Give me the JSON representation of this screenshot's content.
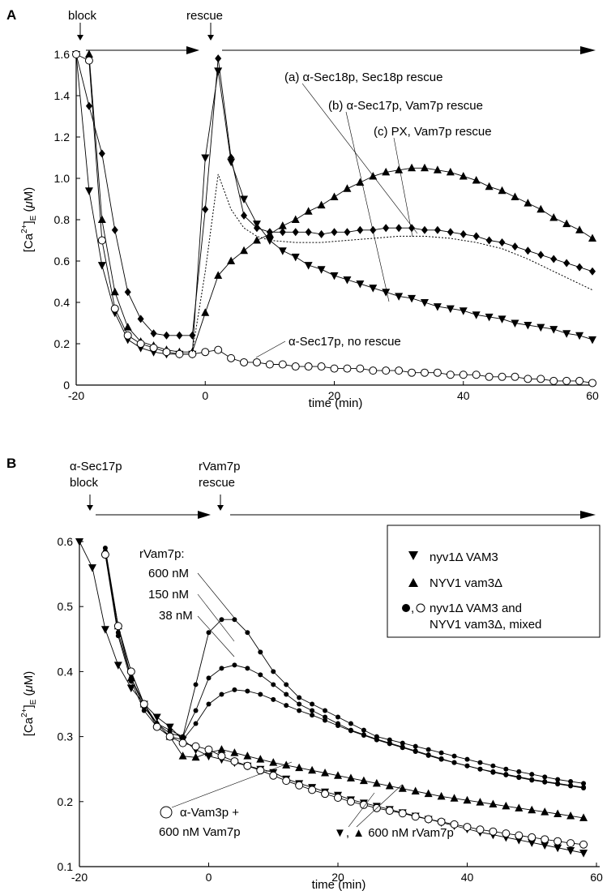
{
  "chart_data": [
    {
      "panel": "A",
      "type": "line",
      "xlabel": "time (min)",
      "ylabel": "[Ca2+]E (μM)",
      "xlim": [
        -20,
        60
      ],
      "ylim": [
        0,
        1.6
      ],
      "xticks": [
        -20,
        0,
        20,
        40,
        60
      ],
      "yticks": [
        0,
        0.2,
        0.4,
        0.6,
        0.8,
        1.0,
        1.2,
        1.4,
        1.6
      ],
      "ytick_labels": [
        "0",
        "0.2",
        "0.4",
        "0.6",
        "0.8",
        "1.0",
        "1.2",
        "1.4",
        "1.6"
      ],
      "top_labels": {
        "block": "block",
        "rescue": "rescue"
      },
      "series": [
        {
          "name": "(a) α-Sec18p, Sec18p rescue",
          "marker": "triangle-up",
          "x": [
            -18,
            -16,
            -14,
            -12,
            -10,
            -8,
            -6,
            -4,
            -2,
            0,
            2,
            4,
            6,
            8,
            10,
            12,
            14,
            16,
            18,
            20,
            22,
            24,
            26,
            28,
            30,
            32,
            34,
            36,
            38,
            40,
            42,
            44,
            46,
            48,
            50,
            52,
            54,
            56,
            58,
            60
          ],
          "y": [
            1.6,
            0.8,
            0.45,
            0.28,
            0.21,
            0.19,
            0.17,
            0.16,
            0.16,
            0.35,
            0.53,
            0.6,
            0.65,
            0.7,
            0.73,
            0.77,
            0.8,
            0.84,
            0.87,
            0.91,
            0.95,
            0.98,
            1.01,
            1.03,
            1.04,
            1.05,
            1.05,
            1.04,
            1.03,
            1.01,
            0.99,
            0.96,
            0.94,
            0.91,
            0.88,
            0.85,
            0.81,
            0.78,
            0.75,
            0.71
          ]
        },
        {
          "name": "(b) α-Sec17p, Vam7p rescue",
          "marker": "triangle-down",
          "x": [
            -20,
            -18,
            -16,
            -14,
            -12,
            -10,
            -8,
            -6,
            -4,
            -2,
            0,
            2,
            4,
            6,
            8,
            10,
            12,
            14,
            16,
            18,
            20,
            22,
            24,
            26,
            28,
            30,
            32,
            34,
            36,
            38,
            40,
            42,
            44,
            46,
            48,
            50,
            52,
            54,
            56,
            58,
            60
          ],
          "y": [
            1.6,
            0.94,
            0.58,
            0.35,
            0.22,
            0.18,
            0.16,
            0.15,
            0.15,
            0.15,
            1.1,
            1.52,
            1.08,
            0.9,
            0.78,
            0.7,
            0.65,
            0.62,
            0.58,
            0.56,
            0.53,
            0.51,
            0.49,
            0.47,
            0.45,
            0.43,
            0.42,
            0.4,
            0.38,
            0.37,
            0.36,
            0.34,
            0.33,
            0.32,
            0.3,
            0.29,
            0.28,
            0.27,
            0.25,
            0.24,
            0.22
          ]
        },
        {
          "name": "(c) PX, Vam7p rescue",
          "marker": "diamond",
          "x": [
            -20,
            -18,
            -16,
            -14,
            -12,
            -10,
            -8,
            -6,
            -4,
            -2,
            0,
            2,
            4,
            6,
            8,
            10,
            12,
            14,
            16,
            18,
            20,
            22,
            24,
            26,
            28,
            30,
            32,
            34,
            36,
            38,
            40,
            42,
            44,
            46,
            48,
            50,
            52,
            54,
            56,
            58,
            60
          ],
          "y": [
            1.6,
            1.35,
            1.12,
            0.75,
            0.45,
            0.32,
            0.25,
            0.24,
            0.24,
            0.24,
            0.85,
            1.58,
            1.1,
            0.82,
            0.76,
            0.74,
            0.74,
            0.74,
            0.74,
            0.73,
            0.74,
            0.74,
            0.75,
            0.75,
            0.76,
            0.76,
            0.76,
            0.75,
            0.75,
            0.74,
            0.73,
            0.72,
            0.7,
            0.69,
            0.67,
            0.65,
            0.63,
            0.61,
            0.59,
            0.57,
            0.55
          ]
        },
        {
          "name": "α-Sec17p, no rescue",
          "marker": "circle-open",
          "x": [
            -20,
            -18,
            -16,
            -14,
            -12,
            -10,
            -8,
            -6,
            -4,
            -2,
            0,
            2,
            4,
            6,
            8,
            10,
            12,
            14,
            16,
            18,
            20,
            22,
            24,
            26,
            28,
            30,
            32,
            34,
            36,
            38,
            40,
            42,
            44,
            46,
            48,
            50,
            52,
            54,
            56,
            58,
            60
          ],
          "y": [
            1.6,
            1.57,
            0.7,
            0.37,
            0.24,
            0.2,
            0.18,
            0.16,
            0.15,
            0.15,
            0.16,
            0.17,
            0.13,
            0.11,
            0.11,
            0.1,
            0.1,
            0.09,
            0.09,
            0.09,
            0.08,
            0.08,
            0.08,
            0.07,
            0.07,
            0.07,
            0.06,
            0.06,
            0.06,
            0.05,
            0.05,
            0.05,
            0.04,
            0.04,
            0.04,
            0.03,
            0.03,
            0.02,
            0.02,
            0.02,
            0.01
          ]
        },
        {
          "name": "",
          "marker": "none",
          "style": "dotted",
          "x": [
            -2,
            0,
            2,
            4,
            6,
            8,
            10,
            14,
            18,
            22,
            26,
            30,
            34,
            38,
            42,
            46,
            50,
            54,
            58,
            60
          ],
          "y": [
            0.16,
            0.55,
            1.02,
            0.85,
            0.76,
            0.72,
            0.7,
            0.69,
            0.69,
            0.7,
            0.71,
            0.72,
            0.72,
            0.71,
            0.69,
            0.66,
            0.61,
            0.55,
            0.49,
            0.46
          ]
        }
      ],
      "annotations": [
        "(a) α-Sec18p, Sec18p rescue",
        "(b) α-Sec17p, Vam7p rescue",
        "(c) PX, Vam7p rescue",
        "α-Sec17p, no rescue"
      ]
    },
    {
      "panel": "B",
      "type": "line",
      "xlabel": "time (min)",
      "ylabel": "[Ca2+]E (μM)",
      "xlim": [
        -20,
        60
      ],
      "ylim": [
        0.1,
        0.6
      ],
      "xticks": [
        -20,
        0,
        20,
        40,
        60
      ],
      "yticks": [
        0.1,
        0.2,
        0.3,
        0.4,
        0.5,
        0.6
      ],
      "ytick_labels": [
        "0.1",
        "0.2",
        "0.3",
        "0.4",
        "0.5",
        "0.6"
      ],
      "top_labels": {
        "block_line1": "α-Sec17p",
        "block_line2": "block",
        "rescue_line1": "rVam7p",
        "rescue_line2": "rescue"
      },
      "legend": [
        "nyv1Δ VAM3",
        "NYV1 vam3Δ",
        "nyv1Δ VAM3 and",
        "NYV1 vam3Δ, mixed"
      ],
      "series": [
        {
          "name": "nyv1Δ VAM3",
          "marker": "triangle-down",
          "x": [
            -20,
            -18,
            -16,
            -14,
            -12,
            -10,
            -8,
            -6,
            -4,
            -2,
            0,
            2,
            4,
            6,
            8,
            10,
            12,
            14,
            16,
            18,
            20,
            22,
            24,
            26,
            28,
            30,
            32,
            34,
            36,
            38,
            40,
            42,
            44,
            46,
            48,
            50,
            52,
            54,
            56,
            58
          ],
          "y": [
            0.6,
            0.56,
            0.465,
            0.41,
            0.375,
            0.35,
            0.33,
            0.315,
            0.295,
            0.28,
            0.27,
            0.265,
            0.26,
            0.255,
            0.25,
            0.245,
            0.235,
            0.228,
            0.222,
            0.215,
            0.21,
            0.203,
            0.198,
            0.193,
            0.188,
            0.183,
            0.178,
            0.173,
            0.168,
            0.163,
            0.158,
            0.153,
            0.149,
            0.145,
            0.141,
            0.137,
            0.133,
            0.129,
            0.125,
            0.121
          ]
        },
        {
          "name": "NYV1 vam3Δ",
          "marker": "triangle-up",
          "x": [
            -16,
            -14,
            -12,
            -10,
            -8,
            -6,
            -4,
            -2,
            0,
            2,
            4,
            6,
            8,
            10,
            12,
            14,
            16,
            18,
            20,
            22,
            24,
            26,
            28,
            30,
            32,
            34,
            36,
            38,
            40,
            42,
            44,
            46,
            48,
            50,
            52,
            54,
            56,
            58
          ],
          "y": [
            0.585,
            0.47,
            0.39,
            0.35,
            0.32,
            0.3,
            0.27,
            0.268,
            0.275,
            0.28,
            0.275,
            0.27,
            0.265,
            0.26,
            0.256,
            0.252,
            0.248,
            0.244,
            0.24,
            0.236,
            0.232,
            0.228,
            0.224,
            0.22,
            0.216,
            0.212,
            0.208,
            0.205,
            0.202,
            0.199,
            0.196,
            0.193,
            0.19,
            0.187,
            0.184,
            0.181,
            0.178,
            0.175
          ]
        },
        {
          "name": "600 nM",
          "marker": "circle-filled",
          "x": [
            -16,
            -14,
            -12,
            -10,
            -8,
            -6,
            -4,
            -2,
            0,
            2,
            4,
            6,
            8,
            10,
            12,
            14,
            16,
            18,
            20,
            22,
            24,
            26,
            28,
            30,
            32,
            34,
            36,
            38,
            40,
            42,
            44,
            46,
            48,
            50,
            52,
            54,
            56,
            58
          ],
          "y": [
            0.59,
            0.47,
            0.4,
            0.35,
            0.32,
            0.31,
            0.3,
            0.38,
            0.46,
            0.48,
            0.48,
            0.46,
            0.43,
            0.4,
            0.38,
            0.36,
            0.35,
            0.34,
            0.33,
            0.32,
            0.31,
            0.3,
            0.295,
            0.29,
            0.285,
            0.28,
            0.275,
            0.27,
            0.265,
            0.26,
            0.255,
            0.25,
            0.246,
            0.242,
            0.238,
            0.234,
            0.231,
            0.228
          ]
        },
        {
          "name": "150 nM",
          "marker": "circle-filled",
          "x": [
            -16,
            -14,
            -12,
            -10,
            -8,
            -6,
            -4,
            -2,
            0,
            2,
            4,
            6,
            8,
            10,
            12,
            14,
            16,
            18,
            20,
            22,
            24,
            26,
            28,
            30,
            32,
            34,
            36,
            38,
            40,
            42,
            44,
            46,
            48,
            50,
            52,
            54,
            56,
            58
          ],
          "y": [
            0.585,
            0.46,
            0.39,
            0.345,
            0.32,
            0.305,
            0.3,
            0.34,
            0.39,
            0.405,
            0.41,
            0.405,
            0.395,
            0.38,
            0.365,
            0.35,
            0.34,
            0.33,
            0.32,
            0.31,
            0.303,
            0.296,
            0.29,
            0.284,
            0.278,
            0.272,
            0.266,
            0.26,
            0.255,
            0.25,
            0.245,
            0.241,
            0.237,
            0.233,
            0.23,
            0.227,
            0.224,
            0.221
          ]
        },
        {
          "name": "38 nM",
          "marker": "circle-filled",
          "x": [
            -16,
            -14,
            -12,
            -10,
            -8,
            -6,
            -4,
            -2,
            0,
            2,
            4,
            6,
            8,
            10,
            12,
            14,
            16,
            18,
            20,
            22,
            24,
            26,
            28,
            30,
            32,
            34,
            36,
            38,
            40,
            42,
            44,
            46,
            48,
            50,
            52,
            54,
            56,
            58
          ],
          "y": [
            0.58,
            0.455,
            0.385,
            0.34,
            0.315,
            0.3,
            0.295,
            0.32,
            0.35,
            0.365,
            0.372,
            0.37,
            0.365,
            0.357,
            0.348,
            0.34,
            0.333,
            0.325,
            0.317,
            0.309,
            0.302,
            0.295,
            0.289,
            0.283,
            0.277,
            0.271,
            0.265,
            0.26,
            0.255,
            0.25,
            0.246,
            0.242,
            0.238,
            0.234,
            0.231,
            0.228,
            0.225,
            0.222
          ]
        },
        {
          "name": "α-Vam3p + 600 nM Vam7p",
          "marker": "circle-open",
          "x": [
            -16,
            -14,
            -12,
            -10,
            -8,
            -6,
            -4,
            -2,
            0,
            2,
            4,
            6,
            8,
            10,
            12,
            14,
            16,
            18,
            20,
            22,
            24,
            26,
            28,
            30,
            32,
            34,
            36,
            38,
            40,
            42,
            44,
            46,
            48,
            50,
            52,
            54,
            56,
            58
          ],
          "y": [
            0.58,
            0.47,
            0.4,
            0.35,
            0.315,
            0.3,
            0.29,
            0.285,
            0.28,
            0.27,
            0.262,
            0.255,
            0.248,
            0.24,
            0.232,
            0.225,
            0.218,
            0.212,
            0.206,
            0.2,
            0.195,
            0.19,
            0.186,
            0.182,
            0.177,
            0.173,
            0.169,
            0.165,
            0.161,
            0.157,
            0.154,
            0.151,
            0.148,
            0.145,
            0.142,
            0.139,
            0.136,
            0.134
          ]
        }
      ],
      "annotations": [
        "rVam7p:",
        "600 nM",
        "150 nM",
        "38 nM",
        "α-Vam3p +",
        "600 nM Vam7p",
        "▼, ▲ 600 nM rVam7p"
      ]
    }
  ],
  "panel_labels": [
    "A",
    "B"
  ]
}
